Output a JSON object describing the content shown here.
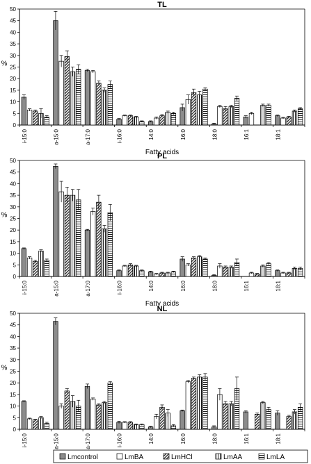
{
  "chart_data": [
    {
      "type": "bar",
      "title": "TL",
      "xlabel": "Fatty acids",
      "ylabel": "%",
      "ylim": [
        0,
        50
      ],
      "yticks": [
        0,
        5,
        10,
        15,
        20,
        25,
        30,
        35,
        40,
        45,
        50
      ],
      "grid": false,
      "categories": [
        "i-15:0",
        "a-15:0",
        "a-17:0",
        "i-16:0",
        "14:0",
        "16:0",
        "18:0",
        "16:1",
        "18:1"
      ],
      "series": [
        {
          "name": "Lmcontrol",
          "values": [
            12,
            45,
            23.5,
            2.5,
            1.5,
            7.5,
            0.5,
            3.5,
            4
          ],
          "errors": [
            1,
            4,
            0.5,
            0.3,
            0.3,
            1.5,
            0.3,
            0.5,
            0.3
          ]
        },
        {
          "name": "LmBA",
          "values": [
            6.5,
            27.5,
            23,
            4,
            3,
            11,
            8,
            5,
            3
          ],
          "errors": [
            0.5,
            2.5,
            0.5,
            0.3,
            0.5,
            2,
            0.5,
            0.5,
            0.3
          ]
        },
        {
          "name": "LmHCl",
          "values": [
            6,
            29.5,
            18,
            4,
            4,
            14,
            7,
            0,
            3.5
          ],
          "errors": [
            0.5,
            2.5,
            1,
            0.3,
            0.5,
            1.5,
            1,
            0,
            0.3
          ]
        },
        {
          "name": "LmAA",
          "values": [
            5,
            23,
            15,
            3.5,
            5.5,
            13,
            8,
            8.5,
            6
          ],
          "errors": [
            2,
            2,
            1,
            0.3,
            0.5,
            1.5,
            0.5,
            0.5,
            0.5
          ]
        },
        {
          "name": "LmLA",
          "values": [
            3.5,
            24,
            17.5,
            1.5,
            5,
            15.5,
            11.5,
            8.5,
            7
          ],
          "errors": [
            0.5,
            2,
            1.5,
            0.3,
            0.5,
            0.5,
            1,
            0.5,
            0.5
          ]
        }
      ]
    },
    {
      "type": "bar",
      "title": "PL",
      "xlabel": "Fatty acids",
      "ylabel": "%",
      "ylim": [
        0,
        50
      ],
      "yticks": [
        0,
        5,
        10,
        15,
        20,
        25,
        30,
        35,
        40,
        45,
        50
      ],
      "grid": false,
      "categories": [
        "i-15:0",
        "a-15:0",
        "a-17:0",
        "i-16:0",
        "14:0",
        "16:0",
        "18:0",
        "16:1",
        "18:1"
      ],
      "series": [
        {
          "name": "Lmcontrol",
          "values": [
            12,
            47.5,
            20,
            2.5,
            2,
            7.5,
            0.5,
            0,
            2.5
          ],
          "errors": [
            0.3,
            1,
            0.3,
            0.3,
            0.3,
            1,
            0.3,
            0,
            0.3
          ]
        },
        {
          "name": "LmBA",
          "values": [
            8,
            36.5,
            28,
            4.5,
            1,
            5,
            4.5,
            1.5,
            1.5
          ],
          "errors": [
            0.5,
            4.5,
            1.5,
            0.3,
            0.3,
            0.5,
            1,
            0.3,
            0.3
          ]
        },
        {
          "name": "LmHCl",
          "values": [
            6.5,
            35,
            32,
            5,
            1.5,
            8,
            4,
            1,
            1.5
          ],
          "errors": [
            0.5,
            3.5,
            3,
            0.5,
            0.3,
            0.5,
            0.5,
            0.3,
            0.3
          ]
        },
        {
          "name": "LmAA",
          "values": [
            11,
            35,
            20.5,
            4.5,
            1.5,
            8.5,
            4,
            4.5,
            3.5
          ],
          "errors": [
            0.5,
            2.5,
            1.5,
            0.3,
            0.3,
            0.5,
            0.5,
            0.5,
            0.5
          ]
        },
        {
          "name": "LmLA",
          "values": [
            7,
            33,
            27.5,
            2.5,
            2,
            7.5,
            6,
            5.5,
            3.5
          ],
          "errors": [
            0.5,
            4.5,
            3.5,
            0.3,
            0.3,
            0.5,
            1.5,
            0.5,
            0.5
          ]
        }
      ]
    },
    {
      "type": "bar",
      "title": "NL",
      "xlabel": "Fatty acids",
      "ylabel": "%",
      "ylim": [
        0,
        50
      ],
      "yticks": [
        0,
        5,
        10,
        15,
        20,
        25,
        30,
        35,
        40,
        45,
        50
      ],
      "grid": false,
      "categories": [
        "i-15:0",
        "a-15:0",
        "a-17:0",
        "i-16:0",
        "14:0",
        "16:0",
        "18:0",
        "16:1",
        "18:1"
      ],
      "series": [
        {
          "name": "Lmcontrol",
          "values": [
            12,
            46.5,
            18.5,
            3,
            1,
            8,
            1,
            7.5,
            7
          ],
          "errors": [
            0.3,
            1.5,
            1,
            0.5,
            0.3,
            0.3,
            0.5,
            0.5,
            1
          ]
        },
        {
          "name": "LmBA",
          "values": [
            4.5,
            10,
            13,
            3,
            5.5,
            20.5,
            15,
            0,
            0
          ],
          "errors": [
            0.3,
            1,
            0.5,
            0.3,
            1,
            0.5,
            2.5,
            0,
            0
          ]
        },
        {
          "name": "LmHCl",
          "values": [
            4,
            16.5,
            10.5,
            3,
            9.5,
            22,
            11,
            6.5,
            5.5
          ],
          "errors": [
            0.3,
            1,
            0.5,
            0.3,
            1,
            0.5,
            1,
            0.5,
            0.5
          ]
        },
        {
          "name": "LmAA",
          "values": [
            5,
            12,
            11.5,
            2,
            7,
            22.5,
            11,
            11.5,
            7.5
          ],
          "errors": [
            0.5,
            2.5,
            0.5,
            0.3,
            1.5,
            1,
            1,
            0.5,
            1
          ]
        },
        {
          "name": "LmLA",
          "values": [
            2.5,
            10,
            20,
            2,
            1.5,
            22.5,
            17.5,
            8.5,
            9.5
          ],
          "errors": [
            0.5,
            2.5,
            0.5,
            0.3,
            0.5,
            1.5,
            5,
            1,
            1.5
          ]
        }
      ]
    }
  ],
  "legend": {
    "placement": "bottom",
    "items": [
      {
        "name": "Lmcontrol",
        "pattern": "solid-gray"
      },
      {
        "name": "LmBA",
        "pattern": "white"
      },
      {
        "name": "LmHCl",
        "pattern": "diagonal-hatch"
      },
      {
        "name": "LmAA",
        "pattern": "vertical-lines"
      },
      {
        "name": "LmLA",
        "pattern": "horizontal-lines"
      }
    ]
  },
  "colors": {
    "control_fill": "#8c8c8c",
    "hatch_fill": "#333333",
    "line": "#000000",
    "background": "#ffffff"
  }
}
